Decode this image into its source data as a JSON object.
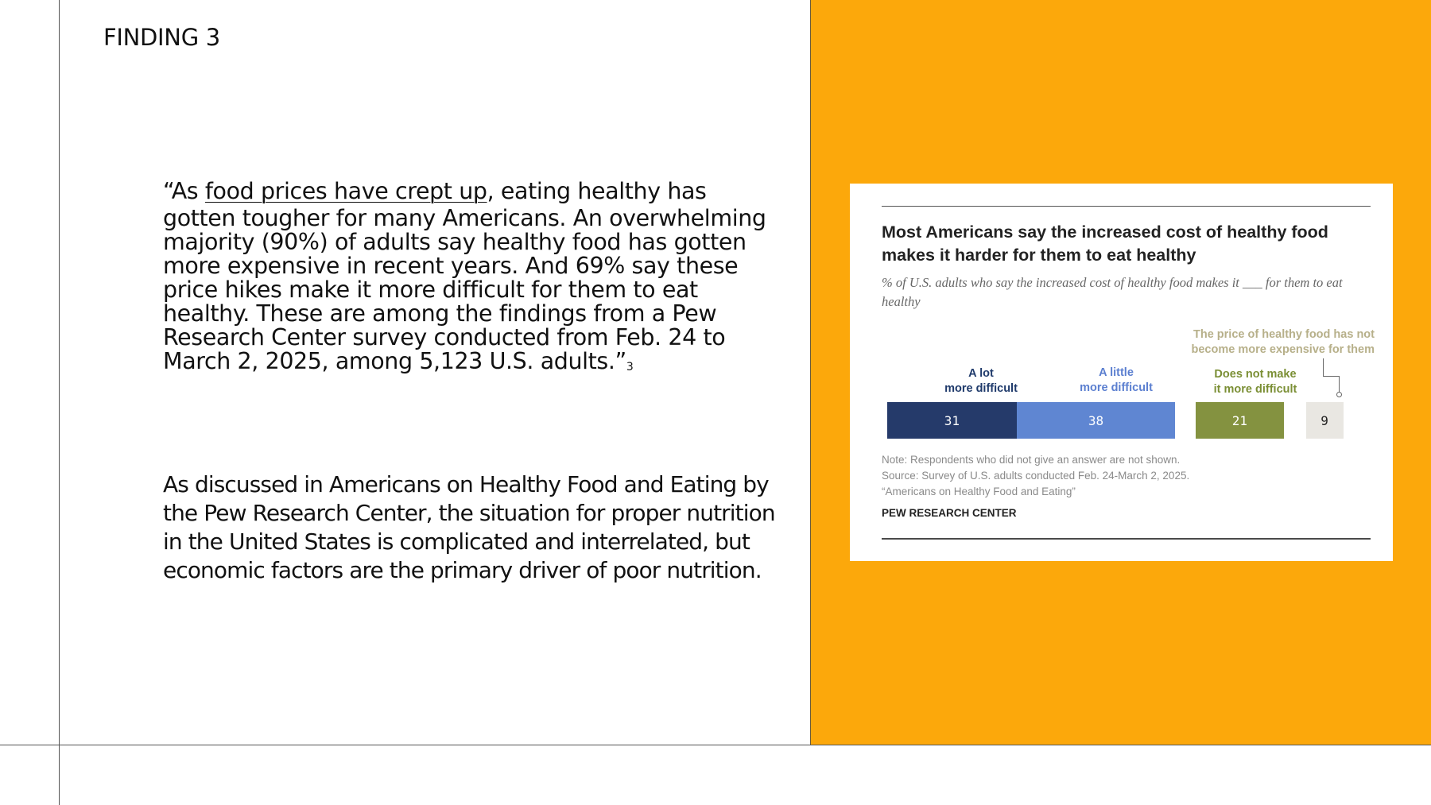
{
  "slide": {
    "label": "FINDING 3",
    "quote": {
      "open": "“As ",
      "link_text": "food prices have crept up",
      "line1_rest": ", eating healthy has",
      "rest": "gotten tougher for many Americans. An overwhelming  majority (90%) of adults say healthy food has gotten more expensive in  recent years. And 69% say these price hikes make it more difficult for them to eat  healthy. These are among the findings from a Pew Research Center survey  conducted from Feb. 24 to March 2, 2025, among 5,123 U.S. adults.”",
      "footnote": "3"
    },
    "body": "As discussed in Americans on Healthy Food and Eating by the Pew Research Center, the situation for proper nutrition in the United States is complicated and interrelated, but economic factors are the primary driver of poor nutrition."
  },
  "colors": {
    "accent_panel": "#fca80b",
    "a_lot": "#253a6a",
    "a_little": "#5f86d2",
    "not_more": "#849240",
    "not_expensive": "#e9e7e2"
  },
  "chart_data": {
    "type": "bar",
    "orientation": "horizontal-stacked",
    "title": "Most Americans say the increased cost of healthy food makes it harder for them to eat healthy",
    "subtitle": "% of U.S. adults who say the increased cost of healthy food makes it ___ for them to eat healthy",
    "segments": [
      {
        "name": "A lot more difficult",
        "label_line1": "A lot",
        "label_line2": "more difficult",
        "value": 31
      },
      {
        "name": "A little more difficult",
        "label_line1": "A little",
        "label_line2": "more difficult",
        "value": 38
      },
      {
        "name": "Does not make it more difficult",
        "label_line1": "Does not make",
        "label_line2": "it more difficult",
        "value": 21
      },
      {
        "name": "The price of healthy food has not become more expensive for them",
        "label_line1": "The price of healthy food has not",
        "label_line2": "become more expensive for them",
        "value": 9
      }
    ],
    "note": "Note: Respondents who did not give an answer are not shown.",
    "source": "Source: Survey of U.S. adults conducted Feb. 24-March 2, 2025.",
    "report": "“Americans on Healthy Food and Eating”",
    "org": "PEW RESEARCH CENTER"
  }
}
